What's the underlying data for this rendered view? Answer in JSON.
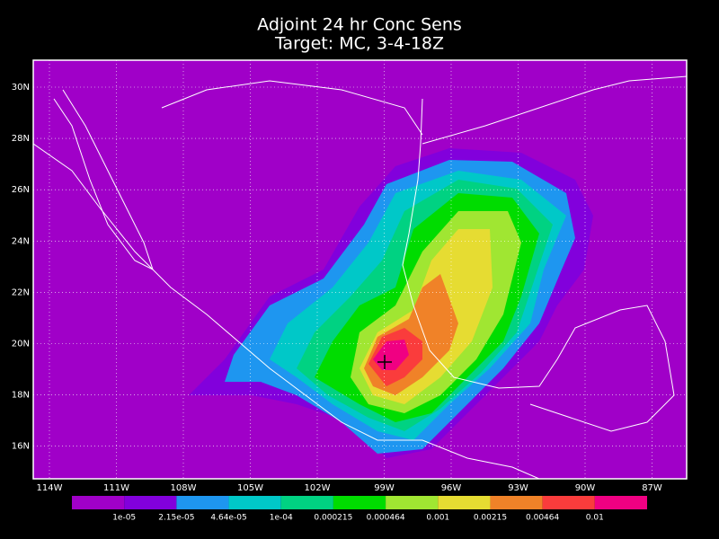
{
  "header": {
    "title": "Adjoint 24 hr Conc Sens",
    "subtitle": "Target: MC, 3-4-18Z"
  },
  "map": {
    "lat_labels": [
      "30N",
      "28N",
      "26N",
      "24N",
      "22N",
      "20N",
      "18N",
      "16N"
    ],
    "lon_labels": [
      "114W",
      "111W",
      "108W",
      "105W",
      "102W",
      "99W",
      "96W",
      "93W",
      "90W",
      "87W"
    ]
  },
  "colorbar": {
    "colors": [
      "#a000c8",
      "#8200dc",
      "#1e96f0",
      "#00c8c8",
      "#00d282",
      "#00dc00",
      "#a0e632",
      "#e6dc32",
      "#f08228",
      "#fa3c3c",
      "#f00082"
    ],
    "labels": [
      "1e-05",
      "2.15e-05",
      "4.64e-05",
      "1e-04",
      "0.000215",
      "0.000464",
      "0.001",
      "0.00215",
      "0.00464",
      "0.01"
    ]
  }
}
